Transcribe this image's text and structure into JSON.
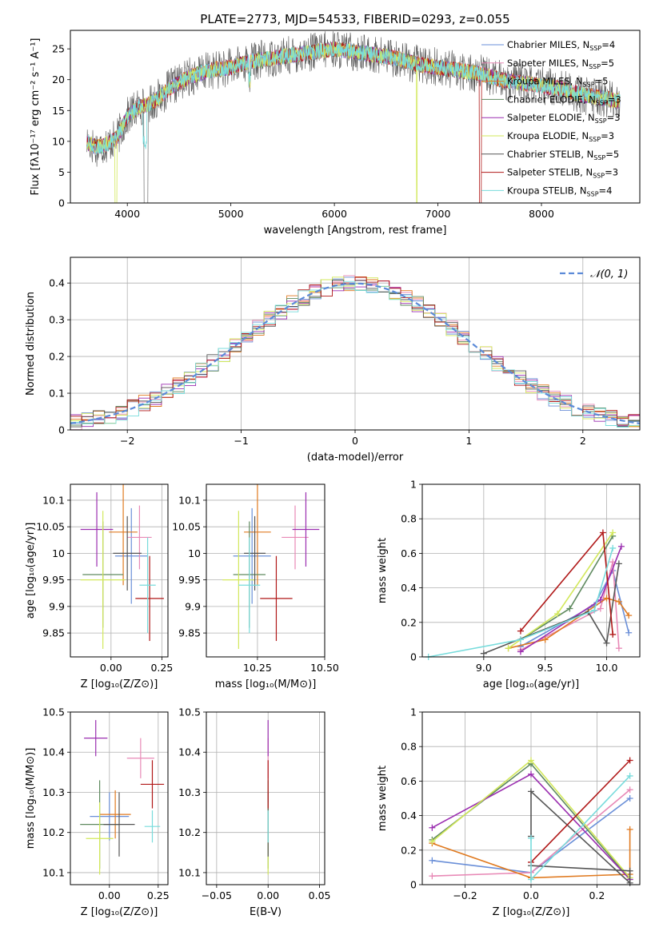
{
  "figure_title": "PLATE=2773, MJD=54533, FIBERID=0293, z=0.055",
  "palette": {
    "Chabrier MILES": "#6a8fd8",
    "Salpeter MILES": "#e889b6",
    "Kroupa MILES": "#e07a20",
    "Chabrier ELODIE": "#5f8a5f",
    "Salpeter ELODIE": "#9b2fb0",
    "Kroupa ELODIE": "#d2e85a",
    "Chabrier STELIB": "#555555",
    "Salpeter STELIB": "#b01818",
    "Kroupa STELIB": "#78dcdc",
    "normal_curve": "#5b8ad8",
    "grid": "#b0b0b0"
  },
  "chart_data": [
    {
      "type": "line",
      "name": "spectrum",
      "title": "PLATE=2773, MJD=54533, FIBERID=0293, z=0.055",
      "xlabel": "wavelength [Angstrom, rest frame]",
      "ylabel": "Flux [fλ10⁻¹⁷ erg cm⁻² s⁻¹ A⁻¹]",
      "xlim": [
        3450,
        8950
      ],
      "ylim": [
        0,
        28
      ],
      "xticks": [
        4000,
        5000,
        6000,
        7000,
        8000
      ],
      "yticks": [
        0,
        5,
        10,
        15,
        20,
        25
      ],
      "grid": false,
      "legend_position": "top-right",
      "legend": [
        {
          "main": "Chabrier MILES, N",
          "sub": "SSP",
          "tail": "=4"
        },
        {
          "main": "Salpeter MILES, N",
          "sub": "SSP",
          "tail": "=5"
        },
        {
          "main": "Kroupa MILES, N",
          "sub": "SSP",
          "tail": "=5"
        },
        {
          "main": "Chabrier ELODIE, N",
          "sub": "SSP",
          "tail": "=3"
        },
        {
          "main": "Salpeter ELODIE, N",
          "sub": "SSP",
          "tail": "=3"
        },
        {
          "main": "Kroupa ELODIE, N",
          "sub": "SSP",
          "tail": "=3"
        },
        {
          "main": "Chabrier STELIB, N",
          "sub": "SSP",
          "tail": "=5"
        },
        {
          "main": "Salpeter STELIB, N",
          "sub": "SSP",
          "tail": "=3"
        },
        {
          "main": "Kroupa STELIB, N",
          "sub": "SSP",
          "tail": "=4"
        }
      ],
      "continuum": {
        "x": [
          3600,
          3700,
          3800,
          3900,
          4000,
          4100,
          4200,
          4300,
          4400,
          4500,
          4600,
          4800,
          5000,
          5200,
          5400,
          5600,
          5800,
          6000,
          6200,
          6400,
          6600,
          6800,
          7000,
          7200,
          7400,
          7600,
          7800,
          8000,
          8200,
          8400,
          8600,
          8750
        ],
        "y": [
          10,
          9,
          9.5,
          10.5,
          14,
          15.5,
          16,
          17,
          18.5,
          19.5,
          20.5,
          21.5,
          22,
          23,
          23.5,
          24,
          24.5,
          25,
          24.5,
          24,
          23.5,
          22.5,
          22,
          21.5,
          21,
          20,
          19.5,
          19,
          18.5,
          17.5,
          17,
          16.5
        ]
      }
    },
    {
      "type": "line",
      "name": "residual-distribution",
      "xlabel": "(data-model)/error",
      "ylabel": "Normed distribution",
      "xlim": [
        -2.5,
        2.5
      ],
      "ylim": [
        0,
        0.47
      ],
      "xticks": [
        -2,
        -1,
        0,
        1,
        2
      ],
      "yticks": [
        0.0,
        0.1,
        0.2,
        0.3,
        0.4
      ],
      "grid": true,
      "legend_position": "top-right",
      "legend": [
        "𝒩(0, 1)"
      ],
      "normal_curve": {
        "mean": 0,
        "sigma": 1
      }
    },
    {
      "type": "scatter",
      "name": "age-vs-Z",
      "xlabel": "Z [log₁₀(Z/Z⊙)]",
      "ylabel": "age  [log₁₀(age/yr)]",
      "xlim": [
        -0.2,
        0.28
      ],
      "ylim": [
        9.805,
        10.13
      ],
      "xticks": [
        -0.0,
        0.25
      ],
      "xticklabels": [
        "0.00",
        "0.25"
      ],
      "yticks": [
        9.85,
        9.9,
        9.95,
        10.0,
        10.05,
        10.1
      ],
      "grid": true,
      "points": [
        {
          "model": "Chabrier MILES",
          "x": 0.1,
          "y": 9.995,
          "xerr": 0.08,
          "yerr": 0.09
        },
        {
          "model": "Salpeter MILES",
          "x": 0.14,
          "y": 10.03,
          "xerr": 0.06,
          "yerr": 0.06
        },
        {
          "model": "Kroupa MILES",
          "x": 0.06,
          "y": 10.04,
          "xerr": 0.07,
          "yerr": 0.1
        },
        {
          "model": "Chabrier ELODIE",
          "x": -0.04,
          "y": 9.96,
          "xerr": 0.1,
          "yerr": 0.1
        },
        {
          "model": "Salpeter ELODIE",
          "x": -0.07,
          "y": 10.045,
          "xerr": 0.08,
          "yerr": 0.07
        },
        {
          "model": "Kroupa ELODIE",
          "x": -0.04,
          "y": 9.95,
          "xerr": 0.11,
          "yerr": 0.13
        },
        {
          "model": "Chabrier STELIB",
          "x": 0.08,
          "y": 10.0,
          "xerr": 0.07,
          "yerr": 0.07
        },
        {
          "model": "Salpeter STELIB",
          "x": 0.19,
          "y": 9.915,
          "xerr": 0.07,
          "yerr": 0.08
        },
        {
          "model": "Kroupa STELIB",
          "x": 0.18,
          "y": 9.94,
          "xerr": 0.04,
          "yerr": 0.09
        }
      ]
    },
    {
      "type": "scatter",
      "name": "age-vs-mass",
      "xlabel": "mass [log₁₀(M/M⊙)]",
      "ylabel": "",
      "xlim": [
        10.06,
        10.5
      ],
      "ylim": [
        9.805,
        10.13
      ],
      "xticks": [
        10.25,
        10.5
      ],
      "xticklabels": [
        "10.25",
        "10.50"
      ],
      "yticks": [
        9.85,
        9.9,
        9.95,
        10.0,
        10.05,
        10.1
      ],
      "grid": true,
      "points": [
        {
          "model": "Chabrier MILES",
          "x": 10.23,
          "y": 9.995,
          "xerr": 0.07,
          "yerr": 0.09
        },
        {
          "model": "Salpeter MILES",
          "x": 10.39,
          "y": 10.03,
          "xerr": 0.05,
          "yerr": 0.06
        },
        {
          "model": "Kroupa MILES",
          "x": 10.25,
          "y": 10.04,
          "xerr": 0.05,
          "yerr": 0.1
        },
        {
          "model": "Chabrier ELODIE",
          "x": 10.22,
          "y": 9.96,
          "xerr": 0.06,
          "yerr": 0.1
        },
        {
          "model": "Salpeter ELODIE",
          "x": 10.43,
          "y": 10.045,
          "xerr": 0.05,
          "yerr": 0.07
        },
        {
          "model": "Kroupa ELODIE",
          "x": 10.18,
          "y": 9.95,
          "xerr": 0.06,
          "yerr": 0.13
        },
        {
          "model": "Chabrier STELIB",
          "x": 10.24,
          "y": 10.0,
          "xerr": 0.04,
          "yerr": 0.07
        },
        {
          "model": "Salpeter STELIB",
          "x": 10.32,
          "y": 9.915,
          "xerr": 0.06,
          "yerr": 0.08
        },
        {
          "model": "Kroupa STELIB",
          "x": 10.22,
          "y": 9.94,
          "xerr": 0.04,
          "yerr": 0.09
        }
      ]
    },
    {
      "type": "line",
      "name": "mass-weight-vs-age",
      "xlabel": "age  [log₁₀(age/yr)]",
      "ylabel": "mass weight",
      "xlim": [
        8.5,
        10.27
      ],
      "ylim": [
        0,
        1
      ],
      "xticks": [
        9.0,
        9.5,
        10.0
      ],
      "xticklabels": [
        "9.0",
        "9.5",
        "10.0"
      ],
      "yticks": [
        0.0,
        0.2,
        0.4,
        0.6,
        0.8,
        1.0
      ],
      "grid": true,
      "series": [
        {
          "model": "Chabrier MILES",
          "x": [
            9.3,
            9.9,
            10.05,
            10.18
          ],
          "y": [
            0.06,
            0.3,
            0.5,
            0.14
          ]
        },
        {
          "model": "Salpeter MILES",
          "x": [
            9.3,
            9.95,
            10.05,
            10.1
          ],
          "y": [
            0.04,
            0.28,
            0.55,
            0.05
          ]
        },
        {
          "model": "Kroupa MILES",
          "x": [
            9.2,
            9.5,
            10.0,
            10.1,
            10.18
          ],
          "y": [
            0.05,
            0.1,
            0.34,
            0.32,
            0.24
          ]
        },
        {
          "model": "Chabrier ELODIE",
          "x": [
            9.3,
            9.7,
            10.05
          ],
          "y": [
            0.1,
            0.28,
            0.7
          ]
        },
        {
          "model": "Salpeter ELODIE",
          "x": [
            9.3,
            9.95,
            10.12
          ],
          "y": [
            0.03,
            0.33,
            0.64
          ]
        },
        {
          "model": "Kroupa ELODIE",
          "x": [
            9.2,
            9.6,
            10.05
          ],
          "y": [
            0.05,
            0.25,
            0.72
          ]
        },
        {
          "model": "Chabrier STELIB",
          "x": [
            9.0,
            9.85,
            10.0,
            10.1
          ],
          "y": [
            0.02,
            0.26,
            0.08,
            0.54
          ]
        },
        {
          "model": "Salpeter STELIB",
          "x": [
            9.3,
            9.97,
            10.05
          ],
          "y": [
            0.15,
            0.72,
            0.13
          ]
        },
        {
          "model": "Kroupa STELIB",
          "x": [
            8.55,
            9.3,
            9.9,
            10.05
          ],
          "y": [
            0.0,
            0.1,
            0.27,
            0.63
          ]
        }
      ]
    },
    {
      "type": "scatter",
      "name": "mass-vs-Z",
      "xlabel": "Z [log₁₀(Z/Z⊙)]",
      "ylabel": "mass [log₁₀(M/M⊙)]",
      "xlim": [
        -0.2,
        0.3
      ],
      "ylim": [
        10.07,
        10.5
      ],
      "xticks": [
        -0.0,
        0.25
      ],
      "xticklabels": [
        "0.00",
        "0.25"
      ],
      "yticks": [
        10.1,
        10.2,
        10.3,
        10.4,
        10.5
      ],
      "grid": true,
      "points": [
        {
          "model": "Chabrier MILES",
          "x": 0.0,
          "y": 10.24,
          "xerr": 0.1,
          "yerr": 0.06
        },
        {
          "model": "Salpeter MILES",
          "x": 0.16,
          "y": 10.385,
          "xerr": 0.07,
          "yerr": 0.05
        },
        {
          "model": "Kroupa MILES",
          "x": 0.03,
          "y": 10.245,
          "xerr": 0.08,
          "yerr": 0.06
        },
        {
          "model": "Chabrier ELODIE",
          "x": -0.05,
          "y": 10.22,
          "xerr": 0.1,
          "yerr": 0.11
        },
        {
          "model": "Salpeter ELODIE",
          "x": -0.07,
          "y": 10.435,
          "xerr": 0.06,
          "yerr": 0.045
        },
        {
          "model": "Kroupa ELODIE",
          "x": -0.05,
          "y": 10.185,
          "xerr": 0.07,
          "yerr": 0.09
        },
        {
          "model": "Chabrier STELIB",
          "x": 0.05,
          "y": 10.22,
          "xerr": 0.08,
          "yerr": 0.08
        },
        {
          "model": "Salpeter STELIB",
          "x": 0.22,
          "y": 10.32,
          "xerr": 0.06,
          "yerr": 0.06
        },
        {
          "model": "Kroupa STELIB",
          "x": 0.22,
          "y": 10.215,
          "xerr": 0.04,
          "yerr": 0.04
        }
      ]
    },
    {
      "type": "scatter",
      "name": "mass-vs-EBV",
      "xlabel": "E(B-V)",
      "ylabel": "",
      "xlim": [
        -0.06,
        0.055
      ],
      "ylim": [
        10.07,
        10.5
      ],
      "xticks": [
        -0.05,
        0.0,
        0.05
      ],
      "xticklabels": [
        "−0.05",
        "0.00",
        "0.05"
      ],
      "yticks": [
        10.1,
        10.2,
        10.3,
        10.4,
        10.5
      ],
      "grid": true,
      "points": [
        {
          "model": "Chabrier MILES",
          "x": 0.0,
          "y": 10.24,
          "xerr": 0,
          "yerr": 0.06
        },
        {
          "model": "Salpeter MILES",
          "x": 0.0,
          "y": 10.385,
          "xerr": 0,
          "yerr": 0.05
        },
        {
          "model": "Kroupa MILES",
          "x": 0.0,
          "y": 10.245,
          "xerr": 0,
          "yerr": 0.06
        },
        {
          "model": "Chabrier ELODIE",
          "x": 0.0,
          "y": 10.22,
          "xerr": 0,
          "yerr": 0.11
        },
        {
          "model": "Salpeter ELODIE",
          "x": 0.0,
          "y": 10.435,
          "xerr": 0,
          "yerr": 0.045
        },
        {
          "model": "Kroupa ELODIE",
          "x": 0.0,
          "y": 10.185,
          "xerr": 0,
          "yerr": 0.09
        },
        {
          "model": "Chabrier STELIB",
          "x": 0.0,
          "y": 10.22,
          "xerr": 0,
          "yerr": 0.08
        },
        {
          "model": "Salpeter STELIB",
          "x": 0.0,
          "y": 10.32,
          "xerr": 0,
          "yerr": 0.06
        },
        {
          "model": "Kroupa STELIB",
          "x": 0.0,
          "y": 10.215,
          "xerr": 0,
          "yerr": 0.04
        }
      ]
    },
    {
      "type": "line",
      "name": "mass-weight-vs-Z",
      "xlabel": "Z [log₁₀(Z/Z⊙)]",
      "ylabel": "mass weight",
      "xlim": [
        -0.33,
        0.33
      ],
      "ylim": [
        0,
        1
      ],
      "xticks": [
        -0.2,
        0.0,
        0.2
      ],
      "xticklabels": [
        "−0.2",
        "0.0",
        "0.2"
      ],
      "yticks": [
        0.0,
        0.2,
        0.4,
        0.6,
        0.8,
        1.0
      ],
      "grid": true,
      "series": [
        {
          "model": "Chabrier MILES",
          "x": [
            -0.3,
            0.0,
            0.3
          ],
          "y": [
            0.14,
            0.07,
            0.5
          ]
        },
        {
          "model": "Salpeter MILES",
          "x": [
            -0.3,
            0.0,
            0.3
          ],
          "y": [
            0.05,
            0.07,
            0.55
          ]
        },
        {
          "model": "Kroupa MILES",
          "x": [
            -0.3,
            0.0,
            0.3,
            0.3
          ],
          "y": [
            0.24,
            0.04,
            0.06,
            0.32
          ]
        },
        {
          "model": "Chabrier ELODIE",
          "x": [
            -0.3,
            0.0,
            0.3
          ],
          "y": [
            0.26,
            0.7,
            0.03
          ]
        },
        {
          "model": "Salpeter ELODIE",
          "x": [
            -0.3,
            0.0,
            0.3
          ],
          "y": [
            0.33,
            0.64,
            0.03
          ]
        },
        {
          "model": "Kroupa ELODIE",
          "x": [
            -0.3,
            0.0,
            0.3
          ],
          "y": [
            0.25,
            0.72,
            0.04
          ]
        },
        {
          "model": "Chabrier STELIB",
          "x": [
            0.0,
            0.0,
            0.3,
            0.3,
            0.0
          ],
          "y": [
            0.28,
            0.54,
            0.01,
            0.08,
            0.11
          ]
        },
        {
          "model": "Salpeter STELIB",
          "x": [
            0.0,
            0.3
          ],
          "y": [
            0.13,
            0.72
          ]
        },
        {
          "model": "Kroupa STELIB",
          "x": [
            0.0,
            0.0,
            0.3
          ],
          "y": [
            0.27,
            0.03,
            0.63
          ]
        }
      ]
    }
  ]
}
